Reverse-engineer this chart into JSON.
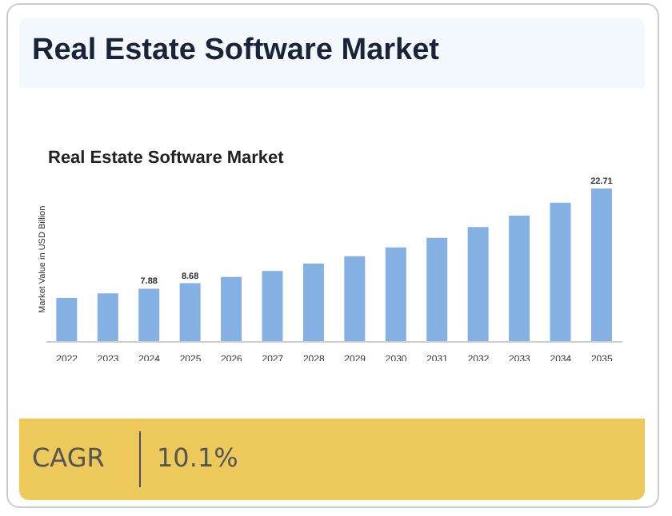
{
  "chart_data": {
    "type": "bar",
    "title": "Real Estate Software Market",
    "subtitle": "Real Estate Software Market",
    "ylabel": "Market Value in USD Billion",
    "categories": [
      "2022",
      "2023",
      "2024",
      "2025",
      "2026",
      "2027",
      "2028",
      "2029",
      "2030",
      "2031",
      "2032",
      "2033",
      "2034",
      "2035"
    ],
    "values": [
      6.5,
      7.2,
      7.88,
      8.68,
      9.6,
      10.5,
      11.6,
      12.7,
      14.0,
      15.4,
      17.0,
      18.7,
      20.6,
      22.71
    ],
    "value_labels": [
      null,
      null,
      "7.88",
      "8.68",
      null,
      null,
      null,
      null,
      null,
      null,
      null,
      null,
      null,
      "22.71"
    ],
    "color": "#84b0e4",
    "tick_labels": "x",
    "annotations": [
      "CAGR",
      "10.1%"
    ]
  }
}
